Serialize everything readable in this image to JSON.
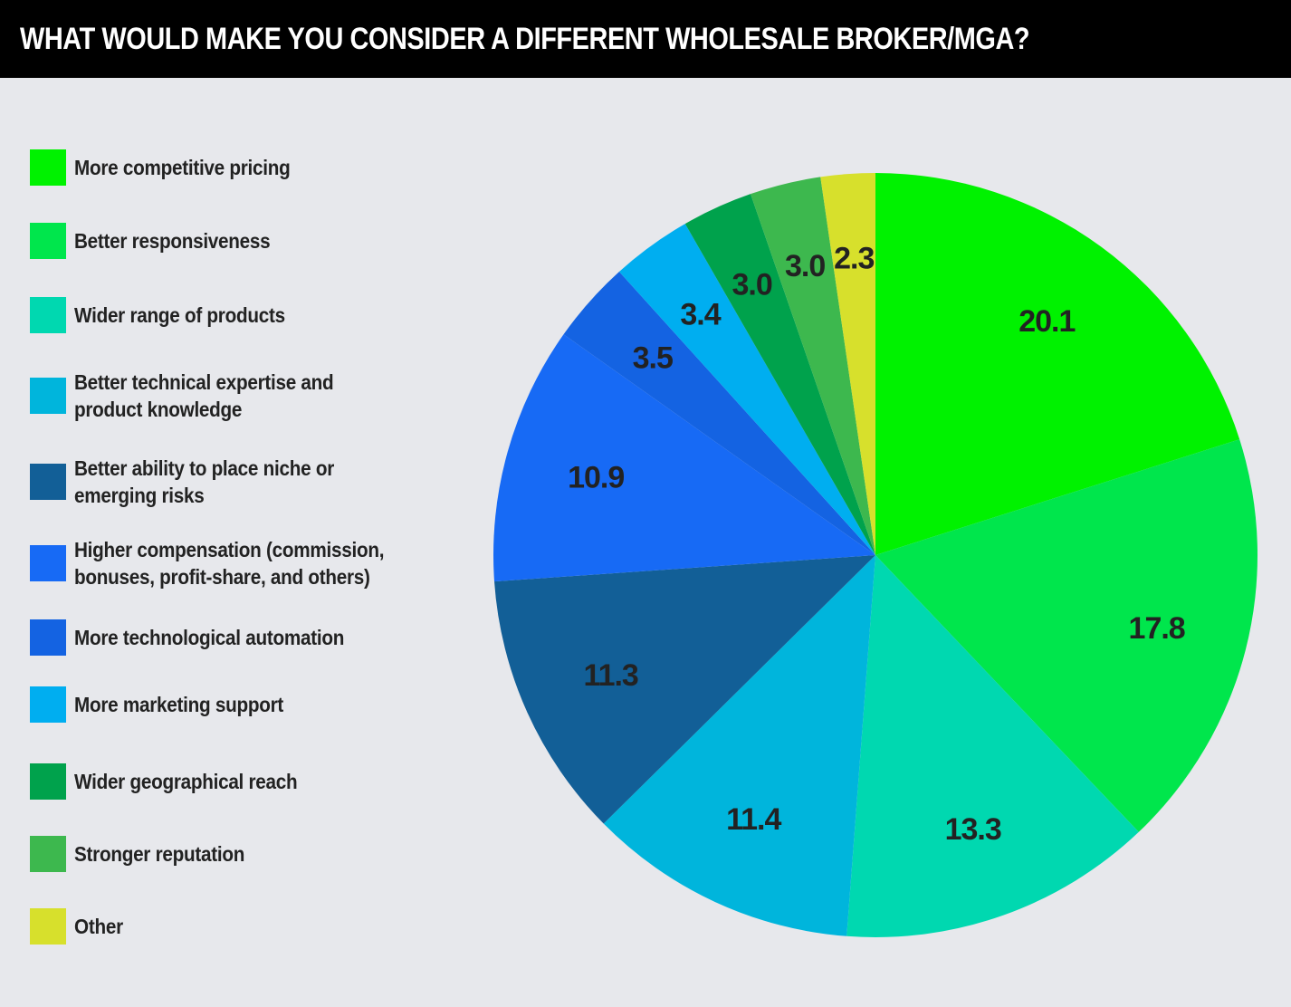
{
  "header": {
    "title": "WHAT WOULD MAKE YOU CONSIDER A DIFFERENT WHOLESALE BROKER/MGA?"
  },
  "chart_data": {
    "type": "pie",
    "title": "WHAT WOULD MAKE YOU CONSIDER A DIFFERENT WHOLESALE BROKER/MGA?",
    "legend_position": "left",
    "slices": [
      {
        "label": "More competitive pricing",
        "value": 20.1,
        "display": "20.1",
        "color": "#00f200"
      },
      {
        "label": "Better responsiveness",
        "value": 17.8,
        "display": "17.8",
        "color": "#00e64c"
      },
      {
        "label": "Wider range of products",
        "value": 13.3,
        "display": "13.3",
        "color": "#00d8b0"
      },
      {
        "label": "Better technical expertise and\nproduct knowledge",
        "value": 11.4,
        "display": "11.4",
        "color": "#00b5dc"
      },
      {
        "label": "Better ability to place niche or\nemerging risks",
        "value": 11.3,
        "display": "11.3",
        "color": "#125f97"
      },
      {
        "label": "Higher compensation (commission,\nbonuses, profit-share, and others)",
        "value": 10.9,
        "display": "10.9",
        "color": "#176af5"
      },
      {
        "label": "More technological automation",
        "value": 3.5,
        "display": "3.5",
        "color": "#1463e2"
      },
      {
        "label": "More marketing support",
        "value": 3.4,
        "display": "3.4",
        "color": "#00aef0"
      },
      {
        "label": "Wider geographical reach",
        "value": 3.0,
        "display": "3.0",
        "color": "#00a24c"
      },
      {
        "label": "Stronger reputation",
        "value": 3.0,
        "display": "3.0",
        "color": "#3db84e"
      },
      {
        "label": "Other",
        "value": 2.3,
        "display": "2.3",
        "color": "#d7e02c"
      }
    ]
  }
}
